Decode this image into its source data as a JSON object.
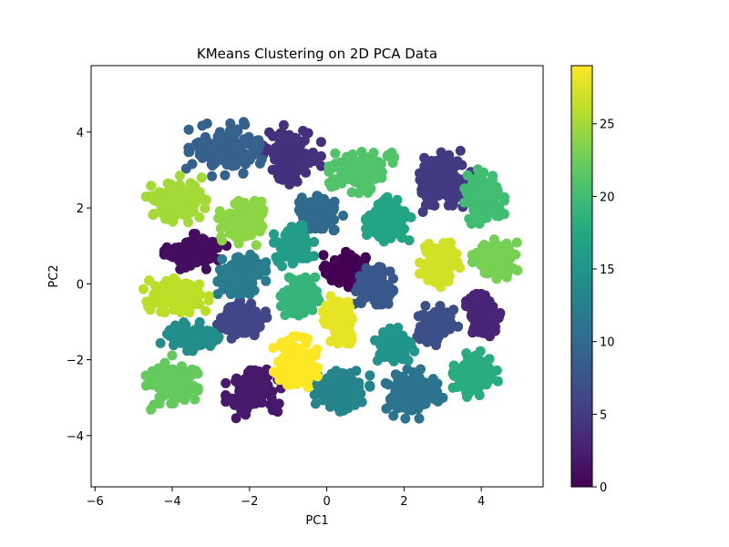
{
  "chart_data": {
    "type": "scatter",
    "title": "KMeans Clustering on 2D PCA Data",
    "xlabel": "PC1",
    "ylabel": "PC2",
    "xlim": [
      -6.1,
      5.6
    ],
    "ylim": [
      -5.35,
      5.75
    ],
    "x_ticks": [
      -6,
      -4,
      -2,
      0,
      2,
      4
    ],
    "y_ticks": [
      -4,
      -2,
      0,
      2,
      4
    ],
    "colormap": "viridis",
    "colorbar": {
      "min": 0,
      "max": 29,
      "ticks": [
        0,
        5,
        10,
        15,
        20,
        25
      ]
    },
    "grid": false,
    "legend": "none",
    "clusters": [
      {
        "label": 0,
        "center": [
          0.5,
          0.35
        ],
        "spread": [
          0.45,
          0.38
        ]
      },
      {
        "label": 1,
        "center": [
          -3.4,
          0.85
        ],
        "spread": [
          0.62,
          0.36
        ]
      },
      {
        "label": 2,
        "center": [
          -1.9,
          -2.85
        ],
        "spread": [
          0.55,
          0.55
        ]
      },
      {
        "label": 3,
        "center": [
          4.1,
          -0.85
        ],
        "spread": [
          0.38,
          0.45
        ]
      },
      {
        "label": 4,
        "center": [
          -0.9,
          3.4
        ],
        "spread": [
          0.58,
          0.6
        ]
      },
      {
        "label": 5,
        "center": [
          3.0,
          2.7
        ],
        "spread": [
          0.6,
          0.62
        ]
      },
      {
        "label": 6,
        "center": [
          -2.2,
          -0.95
        ],
        "spread": [
          0.5,
          0.38
        ]
      },
      {
        "label": 7,
        "center": [
          2.85,
          -1.1
        ],
        "spread": [
          0.42,
          0.4
        ]
      },
      {
        "label": 8,
        "center": [
          1.2,
          -0.05
        ],
        "spread": [
          0.4,
          0.38
        ]
      },
      {
        "label": 9,
        "center": [
          -2.6,
          3.55
        ],
        "spread": [
          0.8,
          0.55
        ]
      },
      {
        "label": 10,
        "center": [
          -0.2,
          1.8
        ],
        "spread": [
          0.48,
          0.4
        ]
      },
      {
        "label": 11,
        "center": [
          2.2,
          -2.9
        ],
        "spread": [
          0.62,
          0.5
        ]
      },
      {
        "label": 12,
        "center": [
          -2.2,
          0.25
        ],
        "spread": [
          0.48,
          0.4
        ]
      },
      {
        "label": 13,
        "center": [
          0.4,
          -2.8
        ],
        "spread": [
          0.55,
          0.5
        ]
      },
      {
        "label": 14,
        "center": [
          -3.5,
          -1.4
        ],
        "spread": [
          0.62,
          0.3
        ]
      },
      {
        "label": 15,
        "center": [
          1.75,
          -1.65
        ],
        "spread": [
          0.4,
          0.42
        ]
      },
      {
        "label": 16,
        "center": [
          -0.85,
          1.0
        ],
        "spread": [
          0.4,
          0.42
        ]
      },
      {
        "label": 17,
        "center": [
          1.6,
          1.7
        ],
        "spread": [
          0.45,
          0.45
        ]
      },
      {
        "label": 18,
        "center": [
          3.85,
          -2.4
        ],
        "spread": [
          0.45,
          0.48
        ]
      },
      {
        "label": 19,
        "center": [
          -0.7,
          -0.35
        ],
        "spread": [
          0.38,
          0.4
        ]
      },
      {
        "label": 20,
        "center": [
          4.05,
          2.3
        ],
        "spread": [
          0.42,
          0.55
        ]
      },
      {
        "label": 21,
        "center": [
          0.9,
          2.95
        ],
        "spread": [
          0.65,
          0.45
        ]
      },
      {
        "label": 22,
        "center": [
          -4.05,
          -2.6
        ],
        "spread": [
          0.55,
          0.55
        ]
      },
      {
        "label": 23,
        "center": [
          4.35,
          0.65
        ],
        "spread": [
          0.45,
          0.4
        ]
      },
      {
        "label": 24,
        "center": [
          -2.2,
          1.6
        ],
        "spread": [
          0.48,
          0.45
        ]
      },
      {
        "label": 25,
        "center": [
          -3.9,
          2.2
        ],
        "spread": [
          0.6,
          0.5
        ]
      },
      {
        "label": 26,
        "center": [
          -3.9,
          -0.3
        ],
        "spread": [
          0.65,
          0.35
        ]
      },
      {
        "label": 27,
        "center": [
          2.95,
          0.5
        ],
        "spread": [
          0.42,
          0.45
        ]
      },
      {
        "label": 28,
        "center": [
          0.35,
          -0.95
        ],
        "spread": [
          0.35,
          0.48
        ]
      },
      {
        "label": 29,
        "center": [
          -0.8,
          -2.1
        ],
        "spread": [
          0.45,
          0.55
        ]
      }
    ]
  }
}
